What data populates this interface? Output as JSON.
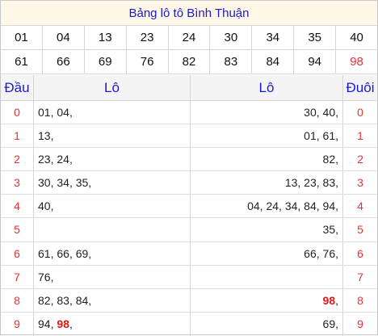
{
  "title": "Bảng lô tô Bình Thuận",
  "numbers_row1": [
    "01",
    "04",
    "13",
    "23",
    "24",
    "30",
    "34",
    "35",
    "40"
  ],
  "numbers_row2": [
    "61",
    "66",
    "69",
    "76",
    "82",
    "83",
    "84",
    "94",
    "98"
  ],
  "highlight_number": "98",
  "header": {
    "dau": "Đầu",
    "lo_left": "Lô",
    "lo_right": "Lô",
    "duoi": "Đuôi"
  },
  "rows": [
    {
      "dau": "0",
      "lo_left": "01, 04,",
      "lo_right": "30, 40,",
      "duoi": "0"
    },
    {
      "dau": "1",
      "lo_left": "13,",
      "lo_right": "01, 61,",
      "duoi": "1"
    },
    {
      "dau": "2",
      "lo_left": "23, 24,",
      "lo_right": "82,",
      "duoi": "2"
    },
    {
      "dau": "3",
      "lo_left": "30, 34, 35,",
      "lo_right": "13, 23, 83,",
      "duoi": "3"
    },
    {
      "dau": "4",
      "lo_left": "40,",
      "lo_right": "04, 24, 34, 84, 94,",
      "duoi": "4"
    },
    {
      "dau": "5",
      "lo_left": "",
      "lo_right": "35,",
      "duoi": "5"
    },
    {
      "dau": "6",
      "lo_left": "61, 66, 69,",
      "lo_right": "66, 76,",
      "duoi": "6"
    },
    {
      "dau": "7",
      "lo_left": "76,",
      "lo_right": "",
      "duoi": "7"
    },
    {
      "dau": "8",
      "lo_left": "82, 83, 84,",
      "lo_right": "98,",
      "duoi": "8"
    },
    {
      "dau": "9",
      "lo_left": "94, 98,",
      "lo_right": "69,",
      "duoi": "9"
    }
  ],
  "colors": {
    "title_text": "#1a1ad6",
    "title_bg": "#fff7e8",
    "digit": "#e63333",
    "highlight": "#e01818"
  }
}
